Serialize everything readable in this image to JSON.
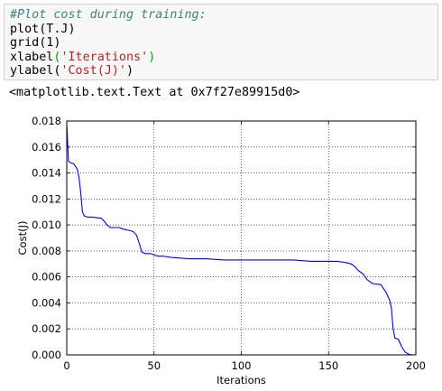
{
  "code_cell": {
    "lines": [
      [
        {
          "t": "#Plot cost during training:",
          "c": "cm-comment"
        }
      ],
      [
        {
          "t": "plot(T.J)",
          "c": "cm-var"
        }
      ],
      [
        {
          "t": "grid(1)",
          "c": "cm-var"
        }
      ],
      [
        {
          "t": "xlabel",
          "c": "cm-var"
        },
        {
          "t": "(",
          "c": "cm-paren-hl"
        },
        {
          "t": "'Iterations'",
          "c": "cm-str"
        },
        {
          "t": ")",
          "c": "cm-paren-hl"
        }
      ],
      [
        {
          "t": "ylabel(",
          "c": "cm-var"
        },
        {
          "t": "'Cost(J)'",
          "c": "cm-str"
        },
        {
          "t": ")",
          "c": "cm-var"
        }
      ]
    ]
  },
  "output_text": "<matplotlib.text.Text at 0x7f27e89915d0>",
  "chart_data": {
    "type": "line",
    "title": "",
    "xlabel": "Iterations",
    "ylabel": "Cost(J)",
    "xlim": [
      0,
      200
    ],
    "ylim": [
      0.0,
      0.018
    ],
    "grid": true,
    "line_color": "#0000ff",
    "xticks": [
      0,
      50,
      100,
      150,
      200
    ],
    "yticks": [
      0.0,
      0.002,
      0.004,
      0.006,
      0.008,
      0.01,
      0.012,
      0.014,
      0.016,
      0.018
    ],
    "ytick_labels": [
      "0.000",
      "0.002",
      "0.004",
      "0.006",
      "0.008",
      "0.010",
      "0.012",
      "0.014",
      "0.016",
      "0.018"
    ],
    "x": [
      0,
      1,
      2,
      4,
      6,
      7,
      8,
      9,
      10,
      12,
      15,
      20,
      22,
      23,
      25,
      28,
      30,
      32,
      35,
      38,
      40,
      42,
      43,
      45,
      48,
      50,
      52,
      55,
      60,
      70,
      80,
      90,
      100,
      110,
      120,
      130,
      140,
      150,
      155,
      160,
      163,
      165,
      167,
      170,
      172,
      175,
      180,
      183,
      185,
      186,
      187,
      188,
      190,
      192,
      194,
      196,
      198,
      200
    ],
    "y": [
      0.0178,
      0.0149,
      0.0148,
      0.0147,
      0.0143,
      0.0137,
      0.0125,
      0.011,
      0.0107,
      0.0106,
      0.0106,
      0.0105,
      0.0102,
      0.01,
      0.0098,
      0.0098,
      0.0098,
      0.0097,
      0.0096,
      0.0095,
      0.0092,
      0.0084,
      0.0079,
      0.0078,
      0.0078,
      0.0077,
      0.0076,
      0.0076,
      0.0075,
      0.0074,
      0.0074,
      0.0073,
      0.0073,
      0.0073,
      0.0073,
      0.0073,
      0.0072,
      0.0072,
      0.0072,
      0.0071,
      0.007,
      0.0068,
      0.0065,
      0.0062,
      0.0058,
      0.0055,
      0.0054,
      0.0048,
      0.0042,
      0.0036,
      0.002,
      0.0013,
      0.0012,
      0.0006,
      0.0002,
      5e-05,
      0.0,
      0.0
    ]
  }
}
